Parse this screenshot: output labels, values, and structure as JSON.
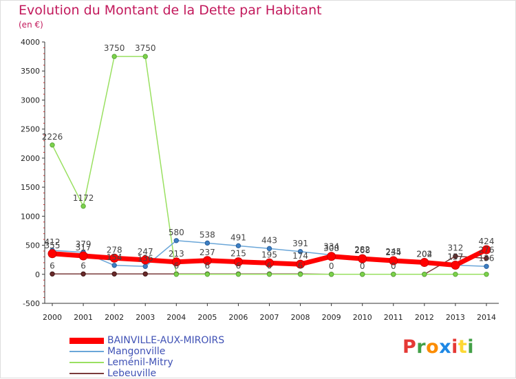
{
  "title": "Evolution du Montant de la Dette par Habitant",
  "subtitle": "(en €)",
  "logo": {
    "text": "Proxiti",
    "letters": [
      "P",
      "r",
      "o",
      "x",
      "i",
      "t",
      "i"
    ],
    "colors": [
      "#e53935",
      "#43a047",
      "#fb8c00",
      "#1e88e5",
      "#e53935",
      "#fdd835",
      "#43a047"
    ]
  },
  "chart_data": {
    "type": "line",
    "title": "Evolution du Montant de la Dette par Habitant",
    "subtitle": "(en €)",
    "xlabel": "",
    "ylabel": "",
    "ylim": [
      -500,
      4000
    ],
    "yticks": [
      -500,
      0,
      500,
      1000,
      1500,
      2000,
      2500,
      3000,
      3500,
      4000
    ],
    "grid": false,
    "legend_position": "bottom-left",
    "categories": [
      "2000",
      "2001",
      "2002",
      "2003",
      "2004",
      "2005",
      "2006",
      "2007",
      "2008",
      "2009",
      "2010",
      "2011",
      "2012",
      "2013",
      "2014"
    ],
    "series": [
      {
        "name": "BAINVILLE-AUX-MIROIRS",
        "color": "#ff0000",
        "marker_fill": "#ff0000",
        "marker_stroke": "#cc0000",
        "width": 7,
        "values": [
          355,
          317,
          278,
          247,
          213,
          237,
          215,
          195,
          174,
          308,
          268,
          234,
          204,
          157,
          424
        ],
        "labels": [
          true,
          true,
          true,
          true,
          true,
          true,
          true,
          true,
          true,
          true,
          true,
          true,
          true,
          true,
          true
        ]
      },
      {
        "name": "Mangonville",
        "color": "#6aa6d8",
        "marker_fill": "#3d7fc4",
        "marker_stroke": "#2a5f99",
        "width": 1.5,
        "values": [
          412,
          379,
          154,
          136,
          580,
          538,
          491,
          443,
          391,
          334,
          282,
          245,
          202,
          157,
          136
        ],
        "labels": [
          true,
          true,
          true,
          true,
          true,
          true,
          true,
          true,
          true,
          true,
          true,
          true,
          true,
          true,
          true
        ]
      },
      {
        "name": "Leménil-Mitry",
        "color": "#99e060",
        "marker_fill": "#7cd34a",
        "marker_stroke": "#5aa33a",
        "width": 1.5,
        "values": [
          2226,
          1172,
          3750,
          3750,
          0,
          0,
          0,
          0,
          0,
          0,
          0,
          0,
          0,
          0,
          0
        ],
        "labels": [
          true,
          true,
          true,
          true,
          false,
          false,
          false,
          false,
          false,
          false,
          false,
          false,
          false,
          false,
          false
        ]
      },
      {
        "name": "Lebeuville",
        "color": "#7a3b3b",
        "marker_fill": "#6a2a2a",
        "marker_stroke": "#3f1515",
        "width": 1.5,
        "values": [
          6,
          6,
          6,
          6,
          6,
          6,
          6,
          6,
          6,
          0,
          0,
          0,
          0,
          312,
          276
        ],
        "labels": [
          true,
          true,
          false,
          false,
          true,
          true,
          true,
          true,
          true,
          true,
          true,
          true,
          false,
          true,
          true
        ]
      }
    ]
  }
}
